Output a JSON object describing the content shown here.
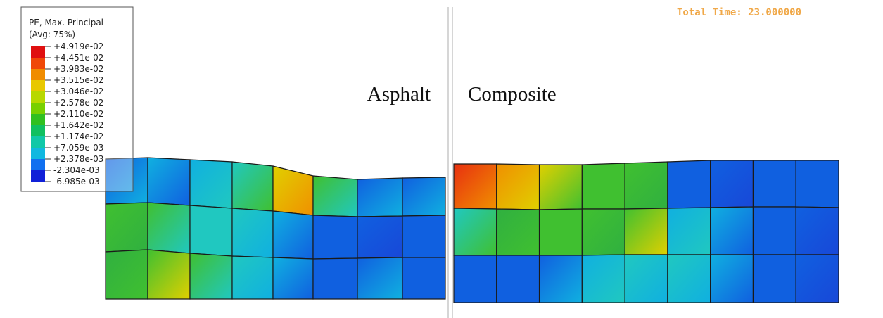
{
  "legend": {
    "title": "PE, Max. Principal",
    "subtitle": "(Avg: 75%)",
    "labels": [
      "+4.919e-02",
      "+4.451e-02",
      "+3.983e-02",
      "+3.515e-02",
      "+3.046e-02",
      "+2.578e-02",
      "+2.110e-02",
      "+1.642e-02",
      "+1.174e-02",
      "+7.059e-03",
      "+2.378e-03",
      "-2.304e-03",
      "-6.985e-03"
    ]
  },
  "status": {
    "total_time": "Total Time: 23.000000"
  },
  "panels": [
    {
      "label": "Asphalt"
    },
    {
      "label": "Composite"
    }
  ]
}
